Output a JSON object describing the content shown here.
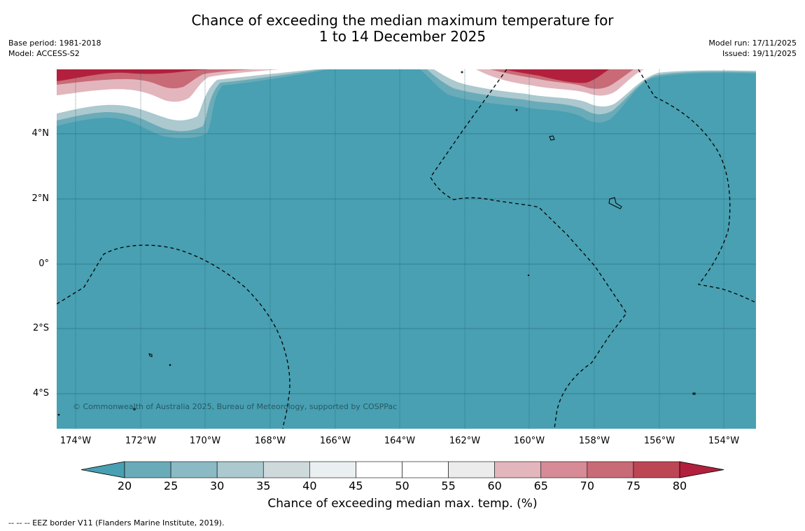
{
  "header": {
    "title_line1": "Chance of exceeding the median maximum temperature for",
    "title_line2": "1 to 14 December 2025",
    "base_period": "Base period: 1981-2018",
    "model": "Model: ACCESS-S2",
    "model_run": "Model run: 17/11/2025",
    "issued": "Issued: 19/11/2025"
  },
  "map": {
    "lat_labels": [
      "4°N",
      "2°N",
      "0°",
      "2°S",
      "4°S"
    ],
    "lon_labels": [
      "174°W",
      "172°W",
      "170°W",
      "168°W",
      "166°W",
      "164°W",
      "162°W",
      "160°W",
      "158°W",
      "156°W",
      "154°W"
    ],
    "copyright": "© Commonwealth of Australia 2025, Bureau of Meteorology, supported by COSPPac",
    "background_color": "#48a0b2"
  },
  "colorbar": {
    "ticks": [
      "20",
      "25",
      "30",
      "35",
      "40",
      "45",
      "50",
      "55",
      "60",
      "65",
      "70",
      "75",
      "80"
    ],
    "colors": [
      "#6aabb9",
      "#8bbac5",
      "#abc9ce",
      "#ced9dc",
      "#eaf0f1",
      "#ffffff",
      "#ffffff",
      "#ececec",
      "#e2b6bc",
      "#d68b96",
      "#c96a77",
      "#bd4655"
    ],
    "under_color": "#48a0b2",
    "over_color": "#b2203d",
    "label": "Chance of exceeding median max. temp. (%)"
  },
  "footnote": "--  --  -- EEZ border V11 (Flanders Marine Institute, 2019)."
}
